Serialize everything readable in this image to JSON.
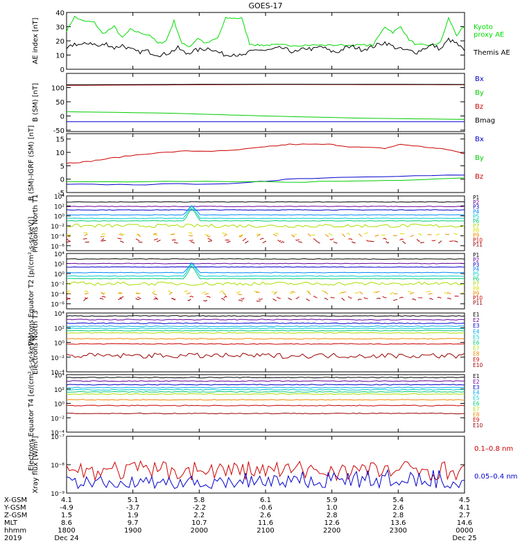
{
  "title": "GOES-17",
  "chart_data": [
    {
      "type": "line",
      "ylabel": "AE index [nT]",
      "ylim": [
        0,
        40
      ],
      "yticks": [
        0,
        10,
        20,
        30,
        40
      ],
      "series": [
        {
          "name": "Kyoto proxy AE",
          "label_lines": [
            "Kyoto",
            "proxy AE"
          ],
          "color": "#00dd00",
          "x": [
            0,
            0.02,
            0.04,
            0.07,
            0.09,
            0.12,
            0.14,
            0.16,
            0.18,
            0.21,
            0.23,
            0.25,
            0.27,
            0.29,
            0.31,
            0.33,
            0.35,
            0.38,
            0.4,
            0.42,
            0.44,
            0.46,
            0.48,
            0.5,
            0.52,
            0.55,
            0.58,
            0.62,
            0.66,
            0.7,
            0.74,
            0.77,
            0.8,
            0.82,
            0.84,
            0.86,
            0.88,
            0.9,
            0.92,
            0.94,
            0.96,
            0.98,
            1.0
          ],
          "y": [
            27,
            37,
            34,
            33,
            25,
            30,
            22,
            28,
            26,
            24,
            18,
            20,
            34,
            18,
            16,
            22,
            18,
            22,
            36,
            36,
            36,
            18,
            17,
            17,
            17,
            17,
            17,
            17,
            17,
            17,
            17,
            17,
            30,
            26,
            30,
            21,
            17,
            17,
            17,
            19,
            36,
            24,
            30
          ]
        },
        {
          "name": "Themis AE",
          "label_lines": [
            "Themis AE"
          ],
          "color": "#000000",
          "x": [
            0,
            0.02,
            0.04,
            0.06,
            0.08,
            0.1,
            0.12,
            0.14,
            0.16,
            0.18,
            0.2,
            0.22,
            0.24,
            0.26,
            0.28,
            0.3,
            0.32,
            0.34,
            0.36,
            0.38,
            0.4,
            0.42,
            0.44,
            0.46,
            0.48,
            0.5,
            0.52,
            0.54,
            0.56,
            0.58,
            0.6,
            0.62,
            0.64,
            0.66,
            0.68,
            0.7,
            0.72,
            0.74,
            0.76,
            0.78,
            0.8,
            0.82,
            0.84,
            0.86,
            0.88,
            0.9,
            0.92,
            0.94,
            0.96,
            0.98,
            1.0
          ],
          "y": [
            14,
            18,
            17,
            19,
            16,
            18,
            15,
            17,
            14,
            12,
            13,
            11,
            10,
            12,
            15,
            11,
            13,
            14,
            15,
            12,
            10,
            11,
            9,
            12,
            14,
            13,
            14,
            15,
            13,
            12,
            15,
            14,
            16,
            13,
            12,
            15,
            16,
            14,
            15,
            17,
            19,
            16,
            14,
            13,
            12,
            15,
            17,
            14,
            21,
            18,
            13
          ]
        }
      ]
    },
    {
      "type": "line",
      "ylabel": "B (SM) [nT]",
      "ylim": [
        -55,
        150
      ],
      "yticks": [
        -50,
        0,
        50,
        100
      ],
      "series": [
        {
          "name": "Bx",
          "color": "#0000cc",
          "x": [
            0,
            0.5,
            1.0
          ],
          "y": [
            -20,
            -20,
            -20
          ]
        },
        {
          "name": "By",
          "color": "#00cc00",
          "x": [
            0,
            0.25,
            0.5,
            0.75,
            1.0
          ],
          "y": [
            15,
            10,
            0,
            -8,
            -12
          ]
        },
        {
          "name": "Bz",
          "color": "#cc0000",
          "x": [
            0,
            0.5,
            1.0
          ],
          "y": [
            108,
            111,
            110
          ]
        },
        {
          "name": "Bmag",
          "color": "#000000",
          "x": [
            0,
            0.5,
            1.0
          ],
          "y": [
            110,
            112,
            111
          ]
        }
      ]
    },
    {
      "type": "line",
      "ylabel": "B (SM)-IGRF (SM) [nT]",
      "ylim": [
        -5,
        17
      ],
      "yticks": [
        -5,
        0,
        5,
        10,
        15
      ],
      "series": [
        {
          "name": "Bx",
          "color": "#0000cc",
          "x": [
            0,
            0.2,
            0.45,
            0.55,
            0.75,
            1.0
          ],
          "y": [
            -2,
            -2,
            -1.5,
            0,
            1,
            1.5
          ]
        },
        {
          "name": "By",
          "color": "#00cc00",
          "x": [
            0,
            0.3,
            0.6,
            0.8,
            1.0
          ],
          "y": [
            -1,
            -1,
            -1,
            -0.5,
            0.5
          ]
        },
        {
          "name": "Bz",
          "color": "#cc0000",
          "x": [
            0,
            0.05,
            0.12,
            0.2,
            0.3,
            0.4,
            0.5,
            0.56,
            0.66,
            0.72,
            0.8,
            0.84,
            0.9,
            0.96,
            1.0
          ],
          "y": [
            6,
            6.5,
            8,
            9.5,
            10.5,
            10.5,
            12,
            13,
            13,
            12,
            11.5,
            13,
            12,
            11,
            9.5
          ]
        }
      ]
    },
    {
      "type": "line",
      "ylabel": "Protons North T1",
      "log": true,
      "ylim_exp": [
        -7,
        4
      ],
      "yticks": [
        "10⁴",
        "10²",
        "10⁰",
        "10⁻²",
        "10⁻⁴",
        "10⁻⁶"
      ],
      "series": [
        {
          "name": "P1",
          "color": "#000000",
          "level": 2.8
        },
        {
          "name": "P2",
          "color": "#660099",
          "level": 1.9
        },
        {
          "name": "P3",
          "color": "#0000cc",
          "level": 1.2
        },
        {
          "name": "P4",
          "color": "#0088ff",
          "level": 0.2
        },
        {
          "name": "P5",
          "color": "#00cccc",
          "level": -0.5
        },
        {
          "name": "P6",
          "color": "#00cc77",
          "level": -1.0
        },
        {
          "name": "P7",
          "color": "#aadd00",
          "level": -2.0
        },
        {
          "name": "P8",
          "color": "#dddd00",
          "level": -3.7
        },
        {
          "name": "P9",
          "color": "#ee8800",
          "level": -3.9
        },
        {
          "name": "P10",
          "color": "#cc0000",
          "level": -4.8
        },
        {
          "name": "P11",
          "color": "#990000",
          "level": -5.2
        }
      ]
    },
    {
      "type": "line",
      "ylabel": "Protons Equator T2 [p/(cm²-s-sr-keV)]",
      "log": true,
      "ylim_exp": [
        -7,
        4
      ],
      "yticks": [
        "10⁴",
        "10²",
        "10⁰",
        "10⁻²",
        "10⁻⁴",
        "10⁻⁶"
      ],
      "series": [
        {
          "name": "P1",
          "color": "#000000",
          "level": 2.9
        },
        {
          "name": "P2",
          "color": "#660099",
          "level": 2.0
        },
        {
          "name": "P3",
          "color": "#0000cc",
          "level": 1.3
        },
        {
          "name": "P4",
          "color": "#0088ff",
          "level": 0.2
        },
        {
          "name": "P5",
          "color": "#00cccc",
          "level": -0.5
        },
        {
          "name": "P6",
          "color": "#00cc77",
          "level": -1.0
        },
        {
          "name": "P7",
          "color": "#aadd00",
          "level": -2.0
        },
        {
          "name": "P8",
          "color": "#dddd00",
          "level": -3.7
        },
        {
          "name": "P9",
          "color": "#ee8800",
          "level": -3.9
        },
        {
          "name": "P10",
          "color": "#cc0000",
          "level": -4.8
        },
        {
          "name": "P11",
          "color": "#990000",
          "level": -5.2
        }
      ]
    },
    {
      "type": "line",
      "ylabel": "Electrons North T3",
      "log": true,
      "ylim_exp": [
        -4,
        4
      ],
      "yticks": [
        "10⁴",
        "10²",
        "10⁰",
        "10⁻²",
        "10⁻⁴"
      ],
      "series": [
        {
          "name": "E1",
          "color": "#000000",
          "level": 3.6
        },
        {
          "name": "E2",
          "color": "#660099",
          "level": 3.1
        },
        {
          "name": "E3",
          "color": "#0000cc",
          "level": 2.6
        },
        {
          "name": "E4",
          "color": "#00aaee",
          "level": 2.2
        },
        {
          "name": "E5",
          "color": "#00cccc",
          "level": 1.9
        },
        {
          "name": "E6",
          "color": "#00cc77",
          "level": 1.6
        },
        {
          "name": "E7",
          "color": "#aadd00",
          "level": 1.3
        },
        {
          "name": "E8",
          "color": "#ee8800",
          "level": 0.5
        },
        {
          "name": "E9",
          "color": "#cc0000",
          "level": -0.2
        },
        {
          "name": "E10",
          "color": "#990000",
          "level": -1.8
        }
      ]
    },
    {
      "type": "line",
      "ylabel": "Electrons Equator T4 [e/(cm²-s-sr-keV)]",
      "log": true,
      "ylim_exp": [
        -4,
        4
      ],
      "yticks": [
        "10⁴",
        "10²",
        "10⁰",
        "10⁻²",
        "10⁻⁴"
      ],
      "series": [
        {
          "name": "E1",
          "color": "#000000",
          "level": 3.6
        },
        {
          "name": "E2",
          "color": "#660099",
          "level": 3.1
        },
        {
          "name": "E3",
          "color": "#0000cc",
          "level": 2.6
        },
        {
          "name": "E4",
          "color": "#00aaee",
          "level": 2.2
        },
        {
          "name": "E5",
          "color": "#00cccc",
          "level": 1.9
        },
        {
          "name": "E6",
          "color": "#00cc77",
          "level": 1.6
        },
        {
          "name": "E7",
          "color": "#aadd00",
          "level": 1.3
        },
        {
          "name": "E8",
          "color": "#ee8800",
          "level": 0.5
        },
        {
          "name": "E9",
          "color": "#cc0000",
          "level": -0.3
        },
        {
          "name": "E10",
          "color": "#990000",
          "level": -1.4
        }
      ]
    },
    {
      "type": "line",
      "ylabel": "Xray flux [W/m²]",
      "log": true,
      "ylim_exp": [
        -9,
        -7
      ],
      "yticks": [
        "10⁻⁷",
        "10⁻⁸",
        "10⁻⁹"
      ],
      "series": [
        {
          "name": "0.1–0.8 nm",
          "color": "#cc0000",
          "level": -8.2
        },
        {
          "name": "0.05–0.4 nm",
          "color": "#0000cc",
          "level": -8.85
        }
      ]
    }
  ],
  "time_axis": {
    "rows": [
      {
        "label": "X-GSM",
        "values": [
          "4.1",
          "5.1",
          "5.8",
          "6.1",
          "5.9",
          "5.4",
          "4.5"
        ]
      },
      {
        "label": "Y-GSM",
        "values": [
          "-4.9",
          "-3.7",
          "-2.2",
          "-0.6",
          "1.0",
          "2.6",
          "4.1"
        ]
      },
      {
        "label": "Z-GSM",
        "values": [
          "1.5",
          "1.9",
          "2.2",
          "2.6",
          "2.8",
          "2.8",
          "2.7"
        ]
      },
      {
        "label": "MLT",
        "values": [
          "8.6",
          "9.7",
          "10.7",
          "11.6",
          "12.6",
          "13.6",
          "14.6"
        ]
      },
      {
        "label": "hhmm",
        "values": [
          "1800",
          "1900",
          "2000",
          "2100",
          "2200",
          "2300",
          "0000"
        ]
      }
    ],
    "year": "2019",
    "start_date": "Dec 24",
    "end_date": "Dec 25"
  }
}
